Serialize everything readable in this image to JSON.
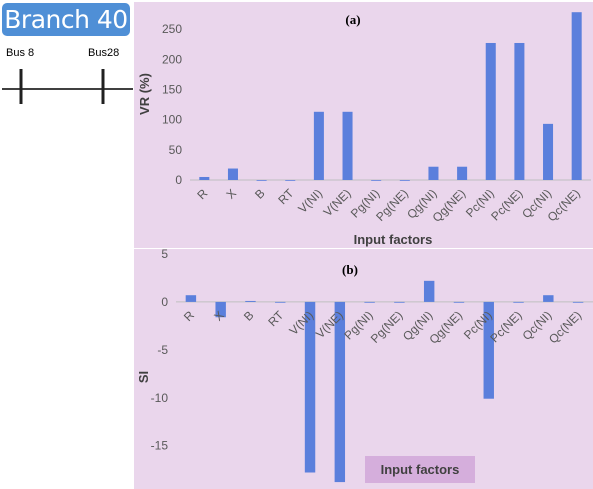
{
  "branch_label": "Branch 40",
  "diagram": {
    "bus_left": "Bus 8",
    "bus_right": "Bus28"
  },
  "colors": {
    "bar": "#5b7fdc",
    "panel_bg": "#ead6ec",
    "badge_bg": "#4f8fd6",
    "tick_text": "#595959",
    "axis_title": "#404040",
    "label_box": "#d5aedc"
  },
  "chart_data": [
    {
      "type": "bar",
      "panel_label": "(a)",
      "categories": [
        "R",
        "X",
        "B",
        "RT",
        "V(NI)",
        "V(NE)",
        "Pg(NI)",
        "Pg(NE)",
        "Qg(NI)",
        "Qg(NE)",
        "Pc(NI)",
        "Pc(NE)",
        "Qc(NI)",
        "Qc(NE)"
      ],
      "values": [
        5,
        19,
        0,
        0,
        113,
        113,
        0,
        0,
        22,
        22,
        227,
        227,
        93,
        278
      ],
      "xlabel": "Input factors",
      "ylabel": "VR (%)",
      "ylim": [
        0,
        280
      ],
      "yticks": [
        0,
        50,
        100,
        150,
        200,
        250
      ],
      "grid": false,
      "legend": "none"
    },
    {
      "type": "bar",
      "panel_label": "(b)",
      "categories": [
        "R",
        "X",
        "B",
        "RT",
        "V(NI)",
        "V(NE)",
        "Pg(NI)",
        "Pg(NE)",
        "Qg(NI)",
        "Qg(NE)",
        "Pc(NI)",
        "Pc(NE)",
        "Qc(NI)",
        "Qc(NE)"
      ],
      "values": [
        0.7,
        -1.6,
        0.1,
        0,
        -17.8,
        -18.8,
        0,
        0,
        2.2,
        0,
        -10.1,
        0,
        0.7,
        0
      ],
      "xlabel": "Input factors",
      "ylabel": "SI",
      "ylim": [
        -19,
        5
      ],
      "yticks": [
        5,
        0,
        -5,
        -10,
        -15
      ],
      "grid": false,
      "legend": "none"
    }
  ]
}
